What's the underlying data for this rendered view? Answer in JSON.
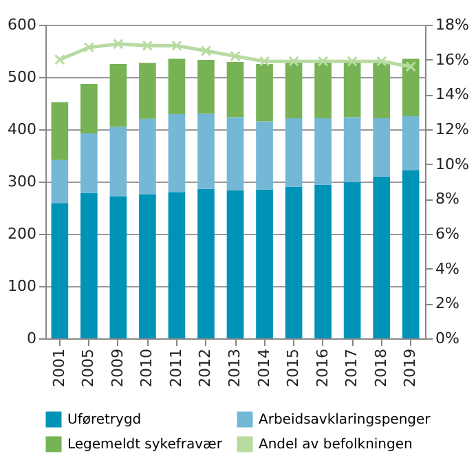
{
  "chart_data": {
    "type": "bar",
    "stacked": true,
    "categories": [
      "2001",
      "2005",
      "2009",
      "2010",
      "2011",
      "2012",
      "2013",
      "2014",
      "2015",
      "2016",
      "2017",
      "2018",
      "2019"
    ],
    "series": [
      {
        "name": "Uføretrygd",
        "color": "#0093b8",
        "values": [
          259,
          278,
          272,
          276,
          280,
          286,
          283,
          285,
          290,
          294,
          299,
          310,
          322
        ]
      },
      {
        "name": "Arbeidsavklaringspenger",
        "color": "#74b8d6",
        "values": [
          82,
          114,
          133,
          144,
          149,
          144,
          140,
          130,
          131,
          127,
          124,
          111,
          103
        ]
      },
      {
        "name": "Legemeldt sykefravær",
        "color": "#77b255",
        "values": [
          111,
          95,
          120,
          107,
          106,
          103,
          106,
          110,
          110,
          110,
          108,
          110,
          110
        ]
      },
      {
        "name": "Andel av befolkningen",
        "color": "#b7dba0",
        "type": "line",
        "axis": "y2",
        "marker": "cross",
        "values": [
          16.0,
          16.7,
          16.9,
          16.8,
          16.8,
          16.5,
          16.2,
          15.9,
          15.9,
          15.9,
          15.9,
          15.9,
          15.6
        ]
      }
    ],
    "ylim": [
      0,
      600
    ],
    "yticks": [
      0,
      100,
      200,
      300,
      400,
      500,
      600
    ],
    "y2lim": [
      0,
      18
    ],
    "y2ticks": [
      {
        "value": 0,
        "label": "0%"
      },
      {
        "value": 2,
        "label": "2%"
      },
      {
        "value": 4,
        "label": "4%"
      },
      {
        "value": 6,
        "label": "6%"
      },
      {
        "value": 8,
        "label": "8%"
      },
      {
        "value": 10,
        "label": "10%"
      },
      {
        "value": 12,
        "label": "12%"
      },
      {
        "value": 14,
        "label": "14%"
      },
      {
        "value": 16,
        "label": "16%"
      },
      {
        "value": 18,
        "label": "18%"
      }
    ],
    "grid": "y",
    "legend": "bottom"
  }
}
